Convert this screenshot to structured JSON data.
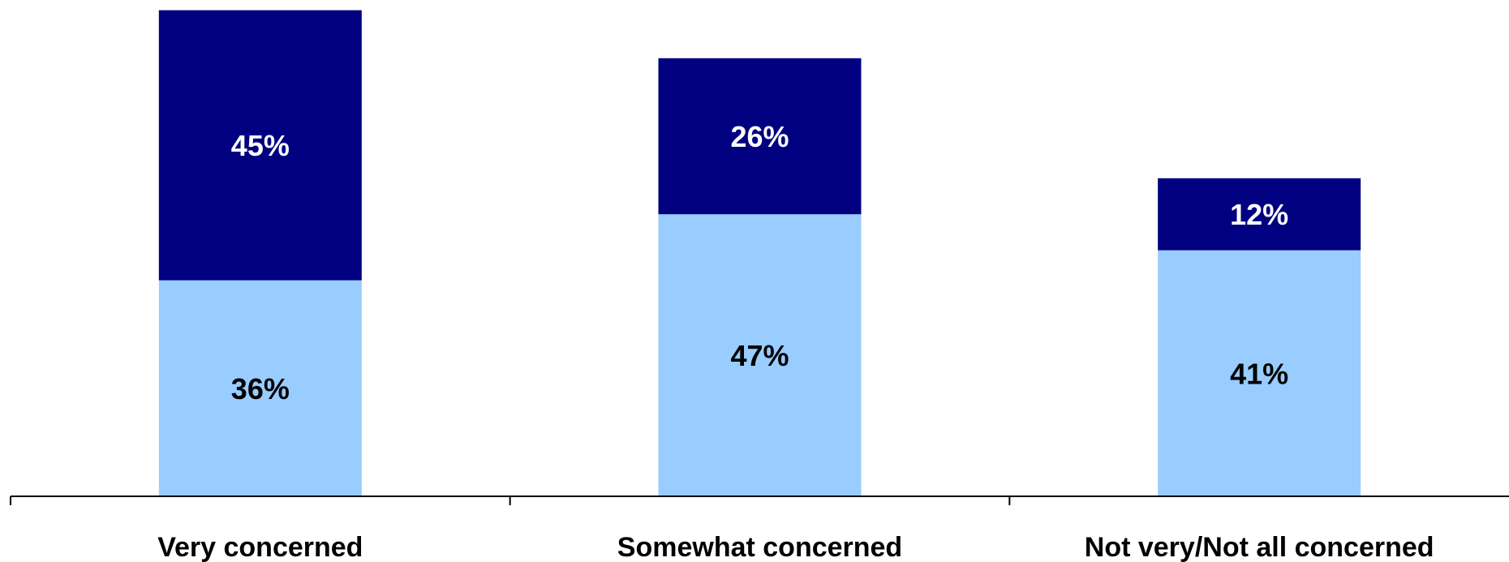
{
  "chart_data": {
    "type": "bar",
    "stacked": true,
    "categories": [
      "Very concerned",
      "Somewhat concerned",
      "Not very/Not all concerned"
    ],
    "series": [
      {
        "values": [
          36,
          47,
          41
        ],
        "labels": [
          "36%",
          "47%",
          "41%"
        ]
      },
      {
        "values": [
          45,
          26,
          12
        ],
        "labels": [
          "45%",
          "26%",
          "12%"
        ]
      }
    ],
    "value_format": "percent",
    "ylim": [
      0,
      90
    ],
    "grid": false,
    "legend": "none",
    "colors": {
      "series_0": "#99ccff",
      "series_1": "#000080",
      "label_on_series_0": "#000000",
      "label_on_series_1": "#ffffff",
      "axis": "#000000"
    }
  }
}
